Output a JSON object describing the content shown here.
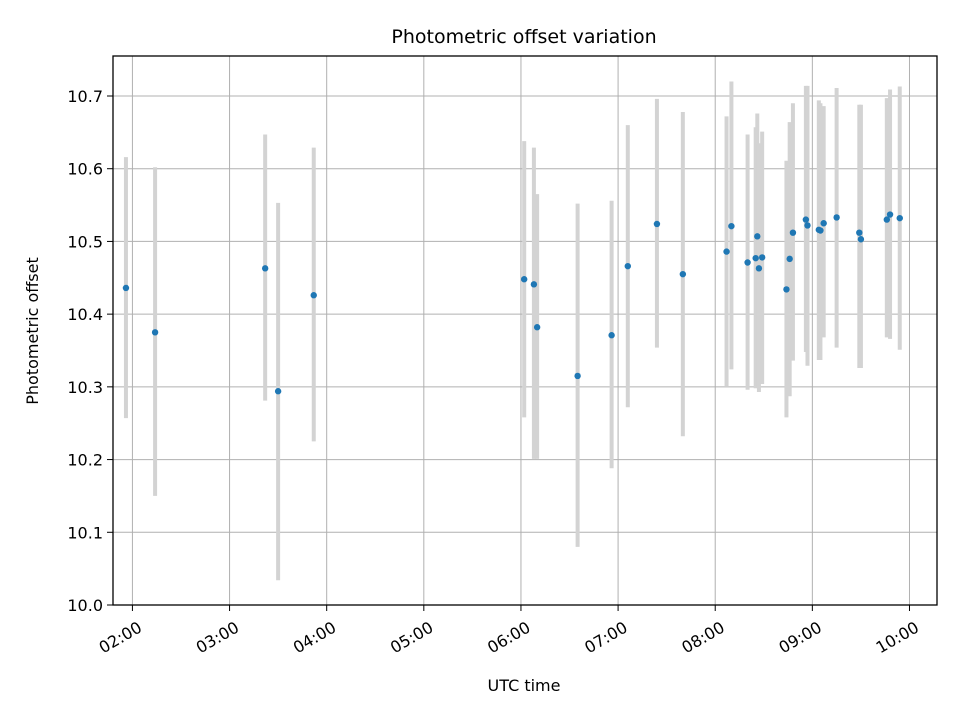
{
  "chart_data": {
    "type": "scatter",
    "title": "Photometric offset variation",
    "xlabel": "UTC time",
    "ylabel": "Photometric offset",
    "x_is_time": true,
    "xlim": [
      "01:48",
      "10:17"
    ],
    "ylim": [
      10.0,
      10.755
    ],
    "x_ticks": [
      "02:00",
      "03:00",
      "04:00",
      "05:00",
      "06:00",
      "07:00",
      "08:00",
      "09:00",
      "10:00"
    ],
    "y_ticks": [
      "10.0",
      "10.1",
      "10.2",
      "10.3",
      "10.4",
      "10.5",
      "10.6",
      "10.7"
    ],
    "grid": true,
    "point_color": "#1f77b4",
    "errorbar_color": "#d3d3d3",
    "points": [
      {
        "t": "01:56",
        "y": 10.436,
        "lo": 10.257,
        "hi": 10.616
      },
      {
        "t": "02:14",
        "y": 10.375,
        "lo": 10.15,
        "hi": 10.602
      },
      {
        "t": "03:22",
        "y": 10.463,
        "lo": 10.281,
        "hi": 10.647
      },
      {
        "t": "03:30",
        "y": 10.294,
        "lo": 10.034,
        "hi": 10.553
      },
      {
        "t": "03:52",
        "y": 10.426,
        "lo": 10.225,
        "hi": 10.629
      },
      {
        "t": "06:02",
        "y": 10.448,
        "lo": 10.258,
        "hi": 10.638
      },
      {
        "t": "06:08",
        "y": 10.441,
        "lo": 10.201,
        "hi": 10.629
      },
      {
        "t": "06:10",
        "y": 10.382,
        "lo": 10.201,
        "hi": 10.565
      },
      {
        "t": "06:35",
        "y": 10.315,
        "lo": 10.08,
        "hi": 10.552
      },
      {
        "t": "06:56",
        "y": 10.371,
        "lo": 10.188,
        "hi": 10.556
      },
      {
        "t": "07:06",
        "y": 10.466,
        "lo": 10.272,
        "hi": 10.66
      },
      {
        "t": "07:24",
        "y": 10.524,
        "lo": 10.354,
        "hi": 10.696
      },
      {
        "t": "07:40",
        "y": 10.455,
        "lo": 10.232,
        "hi": 10.678
      },
      {
        "t": "08:07",
        "y": 10.486,
        "lo": 10.3,
        "hi": 10.672
      },
      {
        "t": "08:10",
        "y": 10.521,
        "lo": 10.324,
        "hi": 10.72
      },
      {
        "t": "08:20",
        "y": 10.471,
        "lo": 10.296,
        "hi": 10.647
      },
      {
        "t": "08:25",
        "y": 10.477,
        "lo": 10.298,
        "hi": 10.657
      },
      {
        "t": "08:26",
        "y": 10.507,
        "lo": 10.3,
        "hi": 10.676
      },
      {
        "t": "08:27",
        "y": 10.463,
        "lo": 10.293,
        "hi": 10.635
      },
      {
        "t": "08:29",
        "y": 10.478,
        "lo": 10.304,
        "hi": 10.651
      },
      {
        "t": "08:44",
        "y": 10.434,
        "lo": 10.258,
        "hi": 10.611
      },
      {
        "t": "08:46",
        "y": 10.476,
        "lo": 10.287,
        "hi": 10.664
      },
      {
        "t": "08:48",
        "y": 10.512,
        "lo": 10.336,
        "hi": 10.69
      },
      {
        "t": "08:56",
        "y": 10.53,
        "lo": 10.348,
        "hi": 10.714
      },
      {
        "t": "08:57",
        "y": 10.522,
        "lo": 10.329,
        "hi": 10.714
      },
      {
        "t": "09:04",
        "y": 10.516,
        "lo": 10.337,
        "hi": 10.694
      },
      {
        "t": "09:05",
        "y": 10.515,
        "lo": 10.337,
        "hi": 10.69
      },
      {
        "t": "09:07",
        "y": 10.525,
        "lo": 10.368,
        "hi": 10.686
      },
      {
        "t": "09:15",
        "y": 10.533,
        "lo": 10.354,
        "hi": 10.711
      },
      {
        "t": "09:29",
        "y": 10.512,
        "lo": 10.326,
        "hi": 10.688
      },
      {
        "t": "09:30",
        "y": 10.503,
        "lo": 10.326,
        "hi": 10.688
      },
      {
        "t": "09:46",
        "y": 10.53,
        "lo": 10.368,
        "hi": 10.697
      },
      {
        "t": "09:48",
        "y": 10.537,
        "lo": 10.366,
        "hi": 10.709
      },
      {
        "t": "09:54",
        "y": 10.532,
        "lo": 10.351,
        "hi": 10.713
      }
    ]
  }
}
